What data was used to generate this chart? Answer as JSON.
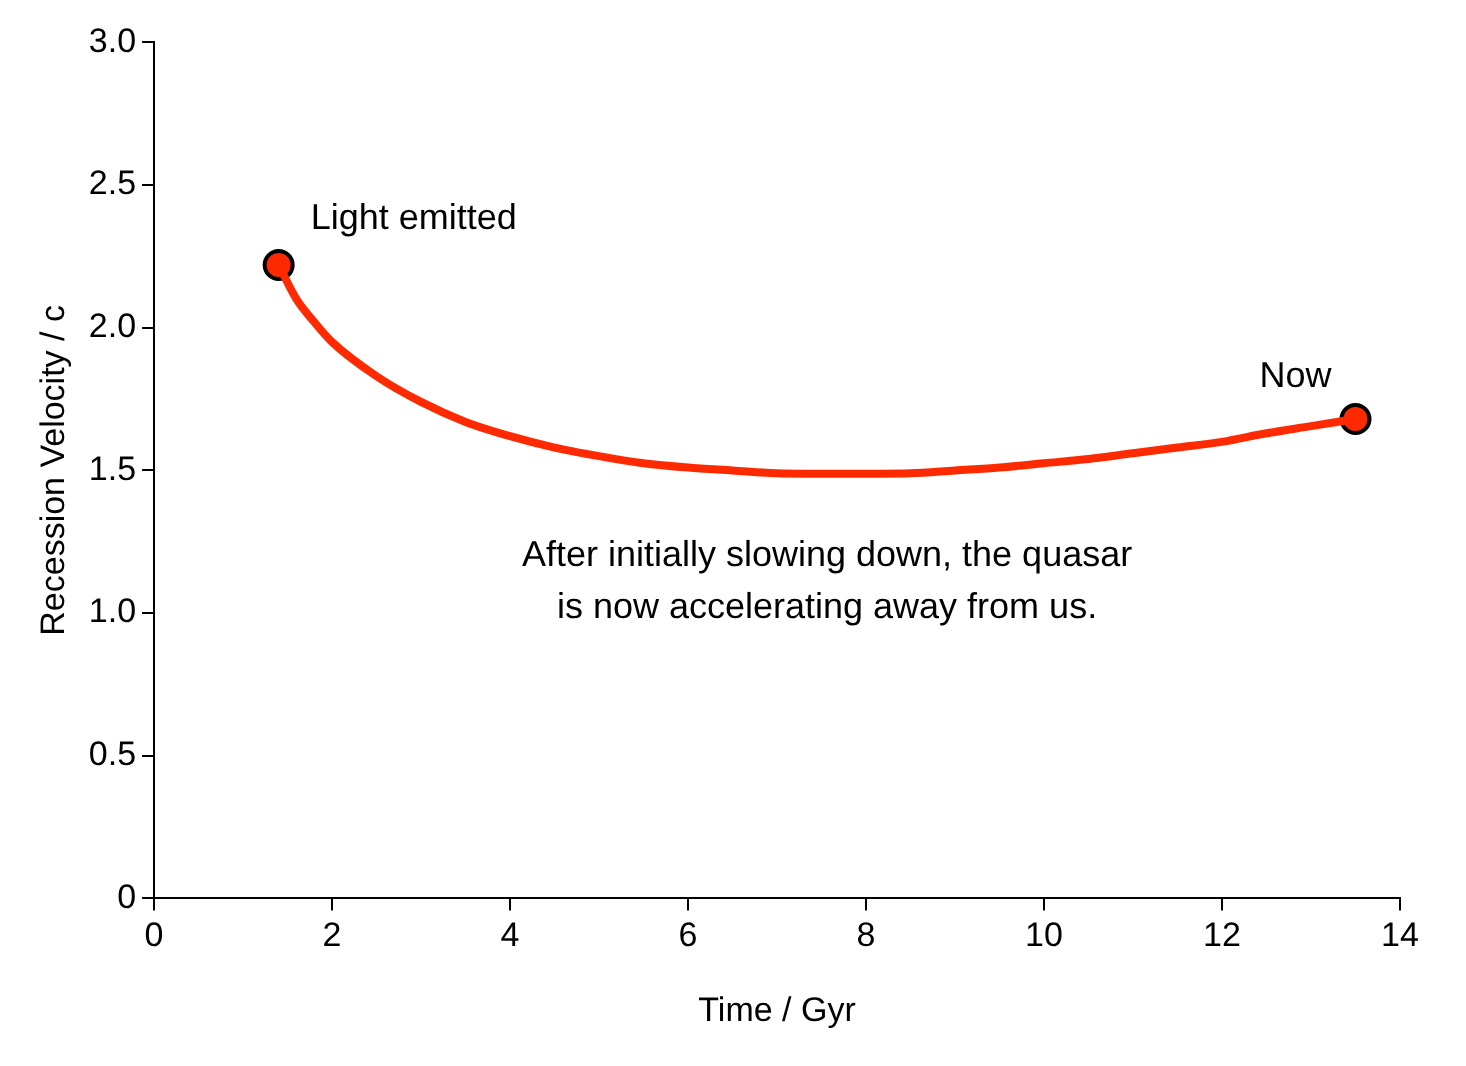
{
  "chart_data": {
    "type": "line",
    "xlabel": "Time / Gyr",
    "ylabel": "Recession Velocity / c",
    "xlim": [
      0,
      14
    ],
    "xticks": [
      0,
      2,
      4,
      6,
      8,
      10,
      12,
      14
    ],
    "ylim": [
      0,
      3
    ],
    "yticks": [
      {
        "value": 0,
        "label": "0"
      },
      {
        "value": 0.5,
        "label": "0.5"
      },
      {
        "value": 1,
        "label": "1.0"
      },
      {
        "value": 1.5,
        "label": "1.5"
      },
      {
        "value": 2,
        "label": "2.0"
      },
      {
        "value": 2.5,
        "label": "2.5"
      },
      {
        "value": 3,
        "label": "3.0"
      }
    ],
    "grid": false,
    "legend": false,
    "series": [
      {
        "color": "#ff2a00",
        "marker": "none",
        "x": [
          1.4,
          1.6,
          1.8,
          2.0,
          2.5,
          3,
          3.5,
          4,
          4.5,
          5,
          5.5,
          6,
          6.5,
          7,
          7.7,
          8.5,
          9,
          9.5,
          10,
          10.5,
          11,
          11.5,
          12,
          12.5,
          13,
          13.5
        ],
        "values": [
          2.22,
          2.1,
          2.02,
          1.95,
          1.83,
          1.74,
          1.67,
          1.62,
          1.58,
          1.55,
          1.525,
          1.51,
          1.5,
          1.49,
          1.488,
          1.49,
          1.5,
          1.51,
          1.525,
          1.54,
          1.56,
          1.58,
          1.6,
          1.63,
          1.655,
          1.68
        ]
      },
      {
        "type": "scatter",
        "color": "#ff2a00",
        "marker": "circle",
        "x": [
          1.4,
          13.5
        ],
        "values": [
          2.22,
          1.68
        ]
      }
    ],
    "annotations": [
      {
        "text": "Light emitted",
        "x": 1.4,
        "y": 2.22
      },
      {
        "text": "Now",
        "x": 13.5,
        "y": 1.68
      },
      "After initially slowing down, the quasar\nis now accelerating away from us."
    ]
  }
}
